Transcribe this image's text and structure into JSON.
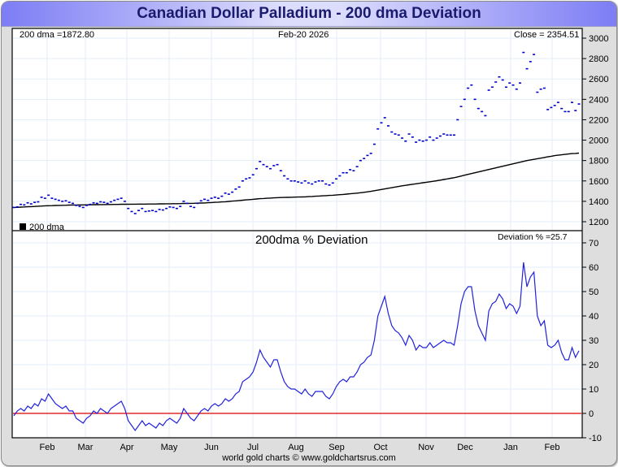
{
  "title": "Canadian Dollar Palladium - 200 dma Deviation",
  "credit": "world gold charts © www.goldchartsrus.com",
  "colors": {
    "price": "#0000cc",
    "dma": "#000000",
    "deviation": "#2222dd",
    "zero_line": "#dd0000",
    "grid": "#e3eef8"
  },
  "chart_data": [
    {
      "type": "scatter",
      "panel": "upper",
      "title": "",
      "header_left": "200 dma =1872.80",
      "header_center": "Feb-20  2026",
      "header_right": "Close = 2354.51",
      "legend": "200 dma",
      "legend_position": "bottom-left",
      "ylim": [
        1150,
        3050
      ],
      "yticks": [
        1200,
        1400,
        1600,
        1800,
        2000,
        2200,
        2400,
        2600,
        2800,
        3000
      ],
      "x_months": [
        "Feb",
        "Mar",
        "Apr",
        "May",
        "Jun",
        "Jul",
        "Aug",
        "Sep",
        "Oct",
        "Nov",
        "Dec",
        "Jan",
        "Feb"
      ],
      "grid": true,
      "series": [
        {
          "name": "Close",
          "values": [
            1340,
            1345,
            1370,
            1365,
            1385,
            1375,
            1390,
            1395,
            1440,
            1430,
            1460,
            1430,
            1420,
            1410,
            1400,
            1405,
            1390,
            1380,
            1360,
            1350,
            1340,
            1360,
            1370,
            1385,
            1380,
            1395,
            1390,
            1380,
            1395,
            1410,
            1420,
            1430,
            1400,
            1330,
            1300,
            1280,
            1310,
            1330,
            1300,
            1305,
            1310,
            1300,
            1320,
            1315,
            1330,
            1345,
            1340,
            1330,
            1350,
            1400,
            1380,
            1350,
            1340,
            1380,
            1405,
            1420,
            1410,
            1430,
            1440,
            1430,
            1450,
            1480,
            1470,
            1490,
            1520,
            1540,
            1600,
            1620,
            1630,
            1660,
            1720,
            1790,
            1760,
            1740,
            1720,
            1750,
            1760,
            1700,
            1650,
            1620,
            1600,
            1600,
            1590,
            1580,
            1600,
            1580,
            1570,
            1590,
            1600,
            1600,
            1570,
            1560,
            1580,
            1620,
            1650,
            1680,
            1680,
            1710,
            1700,
            1740,
            1800,
            1820,
            1850,
            1870,
            1960,
            2110,
            2170,
            2220,
            2140,
            2080,
            2060,
            2050,
            2020,
            1990,
            2060,
            2030,
            1980,
            2000,
            1990,
            2000,
            2030,
            2000,
            2020,
            2040,
            2060,
            2050,
            2050,
            2050,
            2200,
            2330,
            2400,
            2510,
            2540,
            2400,
            2310,
            2280,
            2240,
            2490,
            2520,
            2570,
            2620,
            2590,
            2520,
            2560,
            2540,
            2500,
            2560,
            2860,
            2700,
            2770,
            2840,
            2470,
            2500,
            2510,
            2300,
            2320,
            2340,
            2370,
            2310,
            2280,
            2280,
            2370,
            2290,
            2354.51
          ]
        },
        {
          "name": "200 dma",
          "values": [
            1340,
            1341,
            1343,
            1345,
            1347,
            1348,
            1350,
            1352,
            1354,
            1356,
            1357,
            1358,
            1359,
            1360,
            1361,
            1362,
            1363,
            1364,
            1364,
            1365,
            1365,
            1366,
            1366,
            1367,
            1367,
            1368,
            1368,
            1369,
            1369,
            1370,
            1370,
            1371,
            1371,
            1371,
            1372,
            1372,
            1373,
            1373,
            1373,
            1374,
            1374,
            1374,
            1375,
            1375,
            1376,
            1376,
            1377,
            1377,
            1378,
            1379,
            1380,
            1380,
            1381,
            1382,
            1383,
            1384,
            1386,
            1388,
            1390,
            1392,
            1394,
            1396,
            1399,
            1402,
            1405,
            1408,
            1411,
            1414,
            1417,
            1420,
            1423,
            1426,
            1428,
            1430,
            1432,
            1434,
            1436,
            1437,
            1438,
            1439,
            1440,
            1441,
            1442,
            1443,
            1444,
            1446,
            1448,
            1450,
            1452,
            1454,
            1456,
            1458,
            1460,
            1462,
            1465,
            1468,
            1471,
            1474,
            1477,
            1480,
            1484,
            1488,
            1493,
            1498,
            1504,
            1510,
            1516,
            1522,
            1528,
            1534,
            1540,
            1546,
            1552,
            1557,
            1562,
            1567,
            1572,
            1577,
            1582,
            1587,
            1592,
            1597,
            1602,
            1608,
            1614,
            1620,
            1626,
            1632,
            1640,
            1648,
            1656,
            1664,
            1672,
            1680,
            1688,
            1696,
            1704,
            1712,
            1720,
            1728,
            1736,
            1744,
            1752,
            1760,
            1768,
            1776,
            1784,
            1792,
            1800,
            1806,
            1812,
            1818,
            1824,
            1830,
            1836,
            1842,
            1848,
            1852,
            1856,
            1860,
            1864,
            1868,
            1870,
            1872.8
          ]
        }
      ]
    },
    {
      "type": "line",
      "panel": "lower",
      "title": "200dma  %  Deviation",
      "header_right": "Deviation % =25.7",
      "ylim": [
        -10,
        72
      ],
      "yticks": [
        -10,
        0,
        10,
        20,
        30,
        40,
        50,
        60,
        70
      ],
      "x_months": [
        "Feb",
        "Mar",
        "Apr",
        "May",
        "Jun",
        "Jul",
        "Aug",
        "Sep",
        "Oct",
        "Nov",
        "Dec",
        "Jan",
        "Feb"
      ],
      "grid": true,
      "zero_line": 0,
      "series": [
        {
          "name": "Deviation %",
          "values": [
            -1,
            1,
            2,
            1,
            3,
            2,
            4,
            3,
            6,
            5,
            8,
            6,
            4,
            3,
            2,
            3,
            1,
            1,
            -2,
            -3,
            -4,
            -2,
            -1,
            1,
            0,
            2,
            1,
            0,
            2,
            3,
            4,
            5,
            2,
            -3,
            -5,
            -7,
            -5,
            -3,
            -5,
            -4,
            -5,
            -6,
            -4,
            -5,
            -3,
            -2,
            -3,
            -4,
            -2,
            2,
            0,
            -2,
            -3,
            -1,
            1,
            2,
            1,
            3,
            4,
            3,
            4,
            6,
            5,
            6,
            8,
            9,
            13,
            14,
            15,
            17,
            21,
            26,
            23,
            21,
            19,
            22,
            22,
            17,
            13,
            11,
            10,
            10,
            9,
            8,
            10,
            8,
            7,
            9,
            9,
            9,
            7,
            6,
            8,
            11,
            13,
            14,
            13,
            15,
            15,
            17,
            20,
            21,
            23,
            24,
            30,
            40,
            44,
            48,
            41,
            36,
            34,
            33,
            31,
            28,
            32,
            30,
            26,
            28,
            27,
            27,
            29,
            27,
            28,
            29,
            30,
            29,
            29,
            28,
            36,
            45,
            50,
            52,
            52,
            42,
            36,
            33,
            30,
            42,
            45,
            46,
            49,
            47,
            43,
            45,
            44,
            41,
            44,
            62,
            52,
            56,
            58,
            40,
            36,
            38,
            28,
            27,
            28,
            30,
            25,
            22,
            22,
            27,
            23,
            25.7
          ]
        }
      ]
    }
  ]
}
